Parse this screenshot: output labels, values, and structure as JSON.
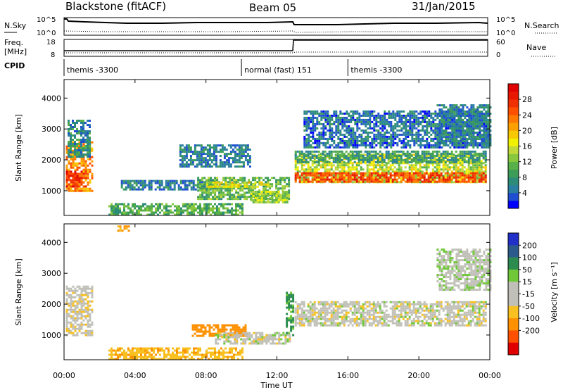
{
  "header": {
    "station": "Blackstone (fitACF)",
    "beam": "Beam 05",
    "date": "31/Jan/2015"
  },
  "summary_panels": {
    "nsky_label": "N.Sky",
    "nsky_ticks": [
      "10^5",
      "10^0"
    ],
    "nsearch_label": "N.Search",
    "nsearch_ticks": [
      "10^5",
      "10^0"
    ],
    "freq_label": "Freq.",
    "freq_unit": "[MHz]",
    "freq_ticks": [
      "18",
      "8"
    ],
    "nave_label": "Nave",
    "nave_ticks": [
      "60",
      "0"
    ],
    "cpid_label": "CPID",
    "cpid_segments": [
      {
        "label": "themis -3300",
        "start_hour": 0,
        "end_hour": 10
      },
      {
        "label": "normal (fast) 151",
        "start_hour": 10,
        "end_hour": 16
      },
      {
        "label": "themis -3300",
        "start_hour": 16,
        "end_hour": 24
      }
    ]
  },
  "chart_data": [
    {
      "type": "heatmap",
      "name": "power",
      "ylabel": "Slant Range [km]",
      "xlabel": "Time UT",
      "xlim": [
        0,
        24
      ],
      "ylim": [
        200,
        4600
      ],
      "yticks": [
        1000,
        2000,
        3000,
        4000
      ],
      "xticks": [
        0,
        4,
        8,
        12,
        16,
        20,
        24
      ],
      "xtick_labels": [
        "00:00",
        "04:00",
        "08:00",
        "12:00",
        "16:00",
        "20:00",
        "00:00"
      ],
      "colorbar": {
        "label": "Power [dB]",
        "ticks": [
          4,
          8,
          12,
          16,
          20,
          24,
          28
        ],
        "range": [
          0,
          32
        ],
        "colors": [
          "#0000ff",
          "#1f4fd0",
          "#2a7fa0",
          "#2c8c78",
          "#3c9c58",
          "#58b048",
          "#88c83c",
          "#c0d838",
          "#f0f000",
          "#f8c800",
          "#fca000",
          "#ff7800",
          "#ff5000",
          "#f03000",
          "#e81800",
          "#e00000"
        ]
      },
      "regions": [
        {
          "t0": 0.1,
          "t1": 1.6,
          "r0": 1000,
          "r1": 2600,
          "value": 22
        },
        {
          "t0": 0.1,
          "t1": 1.2,
          "r0": 1150,
          "r1": 1650,
          "value": 27
        },
        {
          "t0": 0.2,
          "t1": 1.5,
          "r0": 2100,
          "r1": 3300,
          "value": 7
        },
        {
          "t0": 3.2,
          "t1": 8.5,
          "r0": 1050,
          "r1": 1350,
          "value": 6
        },
        {
          "t0": 7.5,
          "t1": 12.7,
          "r0": 700,
          "r1": 1450,
          "value": 11
        },
        {
          "t0": 8.0,
          "t1": 11.5,
          "r0": 1150,
          "r1": 1300,
          "value": 17
        },
        {
          "t0": 10.5,
          "t1": 12.6,
          "r0": 650,
          "r1": 1000,
          "value": 14
        },
        {
          "t0": 6.5,
          "t1": 10.5,
          "r0": 1800,
          "r1": 2500,
          "value": 6
        },
        {
          "t0": 2.5,
          "t1": 10.0,
          "r0": 250,
          "r1": 600,
          "value": 10
        },
        {
          "t0": 13.0,
          "t1": 23.8,
          "r0": 1250,
          "r1": 2200,
          "value": 15
        },
        {
          "t0": 13.0,
          "t1": 23.8,
          "r0": 1300,
          "r1": 1600,
          "value": 26
        },
        {
          "t0": 13.0,
          "t1": 23.8,
          "r0": 1900,
          "r1": 2300,
          "value": 8
        },
        {
          "t0": 13.5,
          "t1": 23.9,
          "r0": 2400,
          "r1": 3600,
          "value": 5
        },
        {
          "t0": 21.0,
          "t1": 24.0,
          "r0": 2500,
          "r1": 3800,
          "value": 6
        }
      ]
    },
    {
      "type": "heatmap",
      "name": "velocity",
      "ylabel": "Slant Range [km]",
      "xlabel": "Time UT",
      "xlim": [
        0,
        24
      ],
      "ylim": [
        200,
        4600
      ],
      "yticks": [
        1000,
        2000,
        3000,
        4000
      ],
      "xticks": [
        0,
        4,
        8,
        12,
        16,
        20,
        24
      ],
      "xtick_labels": [
        "00:00",
        "04:00",
        "08:00",
        "12:00",
        "16:00",
        "20:00",
        "00:00"
      ],
      "colorbar": {
        "label": "Velocity [m s⁻¹]",
        "ticks": [
          "200",
          "100",
          "50",
          "15",
          "-15",
          "-50",
          "-100",
          "-200"
        ],
        "colors": [
          "#2030c8",
          "#2c5a8c",
          "#2c8c50",
          "#70c838",
          "#c0c0b8",
          "#c0c0b8",
          "#f8c020",
          "#ff9000",
          "#ff5000",
          "#e00000"
        ]
      },
      "regions": [
        {
          "t0": 0.1,
          "t1": 1.6,
          "r0": 1000,
          "r1": 2600,
          "value": -5
        },
        {
          "t0": 7.2,
          "t1": 10.2,
          "r0": 950,
          "r1": 1350,
          "value": -80
        },
        {
          "t0": 8.5,
          "t1": 12.7,
          "r0": 700,
          "r1": 1100,
          "value": 0
        },
        {
          "t0": 12.5,
          "t1": 12.9,
          "r0": 1000,
          "r1": 2400,
          "value": 40
        },
        {
          "t0": 13.0,
          "t1": 23.8,
          "r0": 1300,
          "r1": 2100,
          "value": 0
        },
        {
          "t0": 2.5,
          "t1": 10.0,
          "r0": 250,
          "r1": 600,
          "value": -40
        },
        {
          "t0": 3.0,
          "t1": 3.6,
          "r0": 4350,
          "r1": 4550,
          "value": -60
        },
        {
          "t0": 21.0,
          "t1": 24.0,
          "r0": 2500,
          "r1": 3800,
          "value": 5
        }
      ]
    }
  ]
}
